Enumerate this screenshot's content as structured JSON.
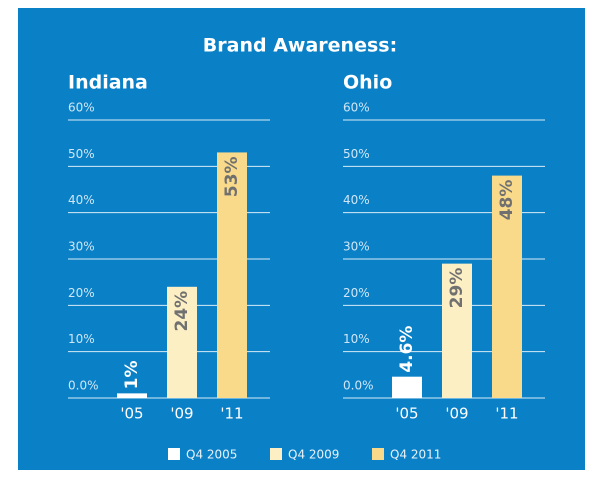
{
  "title": "Brand Awareness:",
  "legend": [
    {
      "name": "Q4 2005",
      "color": "#ffffff"
    },
    {
      "name": "Q4 2009",
      "color": "#fcefc4"
    },
    {
      "name": "Q4 2011",
      "color": "#f9d98a"
    }
  ],
  "chart_data": [
    {
      "type": "bar",
      "title": "Indiana",
      "categories": [
        "'05",
        "'09",
        "'11"
      ],
      "values": [
        1,
        24,
        53
      ],
      "value_labels": [
        "1%",
        "24%",
        "53%"
      ],
      "ylim": [
        0,
        60
      ],
      "yticks": [
        {
          "value": 0,
          "label": "0.0%"
        },
        {
          "value": 10,
          "label": "10%"
        },
        {
          "value": 20,
          "label": "20%"
        },
        {
          "value": 30,
          "label": "30%"
        },
        {
          "value": 40,
          "label": "40%"
        },
        {
          "value": 50,
          "label": "50%"
        },
        {
          "value": 60,
          "label": "60%"
        }
      ],
      "grid": true
    },
    {
      "type": "bar",
      "title": "Ohio",
      "categories": [
        "'05",
        "'09",
        "'11"
      ],
      "values": [
        4.6,
        29,
        48
      ],
      "value_labels": [
        "4.6%",
        "29%",
        "48%"
      ],
      "ylim": [
        0,
        60
      ],
      "yticks": [
        {
          "value": 0,
          "label": "0.0%"
        },
        {
          "value": 10,
          "label": "10%"
        },
        {
          "value": 20,
          "label": "20%"
        },
        {
          "value": 30,
          "label": "30%"
        },
        {
          "value": 40,
          "label": "40%"
        },
        {
          "value": 50,
          "label": "50%"
        },
        {
          "value": 60,
          "label": "60%"
        }
      ],
      "grid": true
    }
  ]
}
